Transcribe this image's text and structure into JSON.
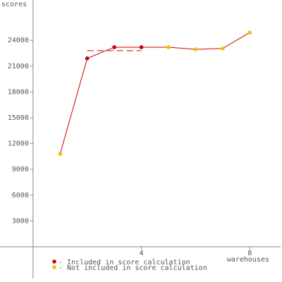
{
  "chart_data": {
    "type": "line",
    "y_label": "scores",
    "x_label": "warehouses",
    "x": [
      1,
      2,
      3,
      4,
      5,
      6,
      7,
      8
    ],
    "values": [
      10800,
      21900,
      23200,
      23200,
      23200,
      22950,
      23050,
      24900
    ],
    "included": [
      false,
      true,
      true,
      true,
      false,
      false,
      false,
      false
    ],
    "line_color": "#cc0000",
    "score": {
      "value": 22800,
      "from": 2,
      "to": 4,
      "color": "#cc0000"
    },
    "legend": [
      {
        "label": "- Included in score calculation",
        "color": "#cc0000"
      },
      {
        "label": "- Not included in score calculation",
        "color": "#f0c000"
      }
    ],
    "xlim": [
      -1.22,
      9.14
    ],
    "ylim": [
      -3690,
      28690
    ],
    "xticks": [
      4,
      8
    ],
    "yticks": [
      3000,
      6000,
      9000,
      12000,
      15000,
      18000,
      21000,
      24000
    ]
  }
}
